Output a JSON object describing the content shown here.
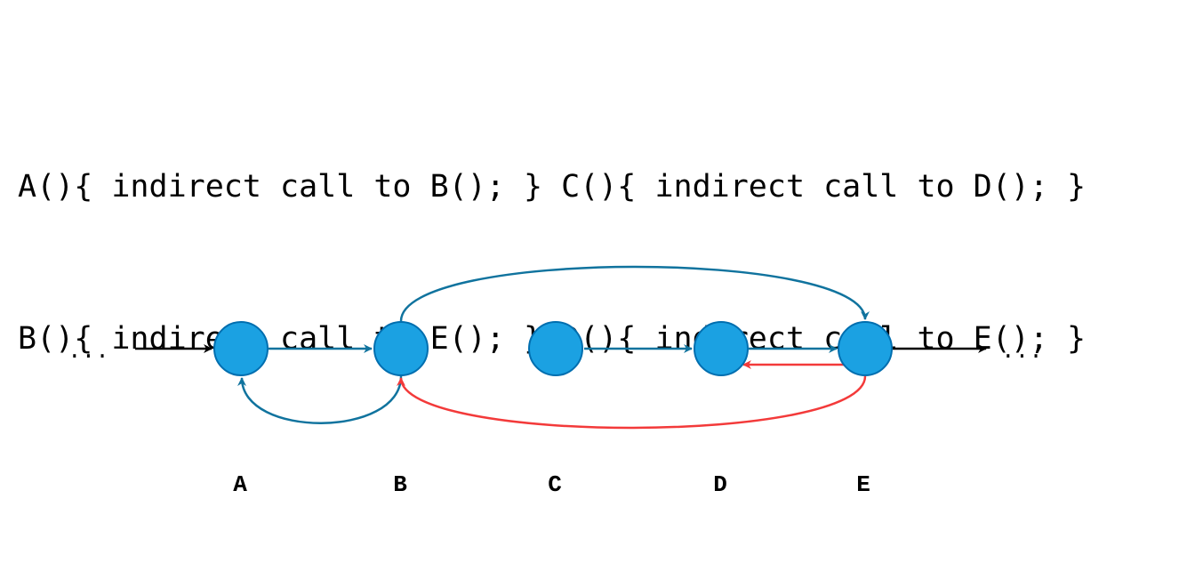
{
  "code": {
    "lines": [
      "A(){ indirect call to B(); } C(){ indirect call to D(); }",
      "B(){ indirect call to E(); } D(){ indirect call to E(); }"
    ]
  },
  "graph": {
    "nodes": [
      {
        "id": "A",
        "label": "A"
      },
      {
        "id": "B",
        "label": "B"
      },
      {
        "id": "C",
        "label": "C"
      },
      {
        "id": "D",
        "label": "D"
      },
      {
        "id": "E",
        "label": "E"
      }
    ],
    "ellipsis_left": "...",
    "ellipsis_right": "...",
    "colors": {
      "node_fill": "#1BA1E2",
      "node_stroke": "#006EAF",
      "blue_edge": "#10739E",
      "red_edge": "#F33A3A",
      "black_edge": "#000000"
    },
    "edges": [
      {
        "from": "left-ellipsis",
        "to": "A",
        "color": "black"
      },
      {
        "from": "A",
        "to": "B",
        "color": "blue"
      },
      {
        "from": "B",
        "to": "A",
        "color": "blue"
      },
      {
        "from": "B",
        "to": "E",
        "color": "blue"
      },
      {
        "from": "C",
        "to": "D",
        "color": "blue"
      },
      {
        "from": "D",
        "to": "E",
        "color": "blue"
      },
      {
        "from": "E",
        "to": "D",
        "color": "red"
      },
      {
        "from": "E",
        "to": "B",
        "color": "red"
      },
      {
        "from": "E",
        "to": "right-ellipsis",
        "color": "black"
      }
    ]
  }
}
